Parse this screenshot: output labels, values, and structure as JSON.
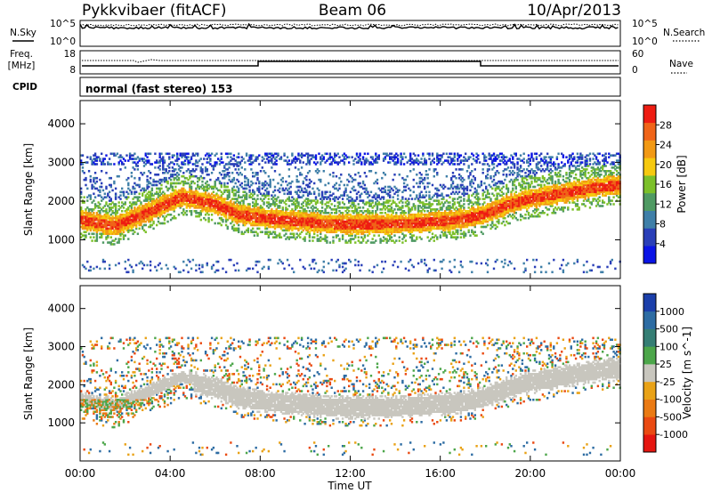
{
  "header": {
    "station": "Pykkvibaer (fitACF)",
    "beam": "Beam 06",
    "date": "10/Apr/2013"
  },
  "sky_panel": {
    "left_label": "N.Sky",
    "tick_top": "10^5",
    "tick_bottom": "10^0",
    "right_label": "N.Search",
    "right_tick_top": "10^5",
    "right_tick_bottom": "10^0"
  },
  "freq_panel": {
    "left_label_1": "Freq.",
    "left_label_2": "[MHz]",
    "tick_top": "18",
    "tick_bottom": "8",
    "right_label": "Nave",
    "right_tick_top": "60",
    "right_tick_bottom": "0"
  },
  "cpid_panel": {
    "label": "CPID",
    "mode_text": "normal (fast stereo) 153"
  },
  "x_axis": {
    "ticks": [
      "00:00",
      "04:00",
      "08:00",
      "12:00",
      "16:00",
      "20:00",
      "00:00"
    ],
    "label": "Time UT"
  },
  "chart_data": [
    {
      "type": "heatmap",
      "name": "power",
      "ylabel": "Slant Range [km]",
      "yticks": [
        "1000",
        "2000",
        "3000",
        "4000"
      ],
      "ylim": [
        0,
        4600
      ],
      "xlim_hours": [
        0,
        24
      ],
      "colorbar_label": "Power [dB]",
      "colorbar_ticks": [
        "4",
        "8",
        "12",
        "16",
        "20",
        "24",
        "28"
      ],
      "colorbar_colors": [
        "#0a14e6",
        "#2a3fb8",
        "#3f7fa8",
        "#4f9a63",
        "#7cc02a",
        "#f6c90f",
        "#f29914",
        "#f06418",
        "#ee1c12"
      ]
    },
    {
      "type": "heatmap",
      "name": "velocity",
      "ylabel": "Slant Range [km]",
      "yticks": [
        "1000",
        "2000",
        "3000",
        "4000"
      ],
      "ylim": [
        0,
        4600
      ],
      "xlim_hours": [
        0,
        24
      ],
      "colorbar_label": "Velocity [m s^-1]",
      "colorbar_ticks": [
        "1000",
        "500",
        "100",
        "25",
        "-25",
        "-100",
        "-500",
        "-1000"
      ],
      "colorbar_colors": [
        "#1b3faa",
        "#2d6ca3",
        "#357e74",
        "#4ca64a",
        "#c8c6be",
        "#e9a217",
        "#ea7a13",
        "#ea4a12",
        "#e51610"
      ],
      "ground_scatter_color": "#c8c6be"
    }
  ]
}
